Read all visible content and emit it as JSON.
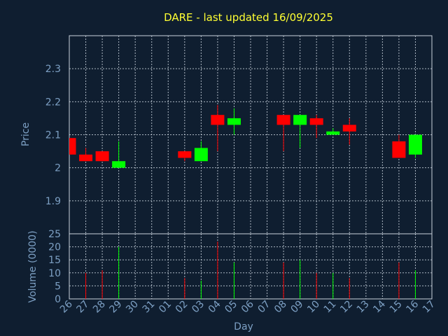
{
  "chart_data": {
    "type": "candlestick",
    "title": "DARE - last updated 16/09/2025",
    "xlabel": "Day",
    "ylabel_price": "Price",
    "ylabel_volume": "Volume (0000)",
    "x_ticks": [
      "26",
      "27",
      "28",
      "29",
      "30",
      "31",
      "01",
      "02",
      "03",
      "04",
      "05",
      "06",
      "07",
      "08",
      "09",
      "10",
      "11",
      "12",
      "13",
      "14",
      "15",
      "16",
      "17"
    ],
    "price_ylim": [
      1.8,
      2.4
    ],
    "price_yticks": [
      1.9,
      2,
      2.1,
      2.2,
      2.3
    ],
    "price_ytick_labels": [
      "1.9",
      "2",
      "2.1",
      "2.2",
      "2.3"
    ],
    "volume_ylim": [
      0,
      25
    ],
    "volume_yticks": [
      0,
      5,
      10,
      15,
      20,
      25
    ],
    "volume_ytick_labels": [
      "0",
      "5",
      "10",
      "15",
      "20",
      "25"
    ],
    "grid": true,
    "colors": {
      "up": "#00ff00",
      "down": "#ff0000",
      "background": "#0f1e30",
      "title": "#ffff33",
      "text": "#7da0c4"
    },
    "candles": [
      {
        "day": "26",
        "open": 2.09,
        "close": 2.04,
        "high": 2.09,
        "low": 2.04,
        "volume": 0
      },
      {
        "day": "27",
        "open": 2.04,
        "close": 2.02,
        "high": 2.06,
        "low": 2.02,
        "volume": 10
      },
      {
        "day": "28",
        "open": 2.05,
        "close": 2.02,
        "high": 2.05,
        "low": 2.02,
        "volume": 11
      },
      {
        "day": "29",
        "open": 2.0,
        "close": 2.02,
        "high": 2.08,
        "low": 2.0,
        "volume": 20
      },
      {
        "day": "02",
        "open": 2.05,
        "close": 2.03,
        "high": 2.05,
        "low": 2.02,
        "volume": 8
      },
      {
        "day": "03",
        "open": 2.02,
        "close": 2.06,
        "high": 2.08,
        "low": 2.02,
        "volume": 7
      },
      {
        "day": "04",
        "open": 2.16,
        "close": 2.13,
        "high": 2.19,
        "low": 2.05,
        "volume": 22
      },
      {
        "day": "05",
        "open": 2.13,
        "close": 2.15,
        "high": 2.18,
        "low": 2.1,
        "volume": 14
      },
      {
        "day": "08",
        "open": 2.16,
        "close": 2.13,
        "high": 2.16,
        "low": 2.05,
        "volume": 14
      },
      {
        "day": "09",
        "open": 2.13,
        "close": 2.16,
        "high": 2.16,
        "low": 2.06,
        "volume": 15
      },
      {
        "day": "10",
        "open": 2.15,
        "close": 2.13,
        "high": 2.16,
        "low": 2.09,
        "volume": 10
      },
      {
        "day": "11",
        "open": 2.1,
        "close": 2.11,
        "high": 2.12,
        "low": 2.1,
        "volume": 10
      },
      {
        "day": "12",
        "open": 2.13,
        "close": 2.11,
        "high": 2.15,
        "low": 2.07,
        "volume": 8
      },
      {
        "day": "15",
        "open": 2.08,
        "close": 2.03,
        "high": 2.1,
        "low": 2.03,
        "volume": 14
      },
      {
        "day": "16",
        "open": 2.04,
        "close": 2.1,
        "high": 2.1,
        "low": 2.03,
        "volume": 11
      }
    ]
  }
}
